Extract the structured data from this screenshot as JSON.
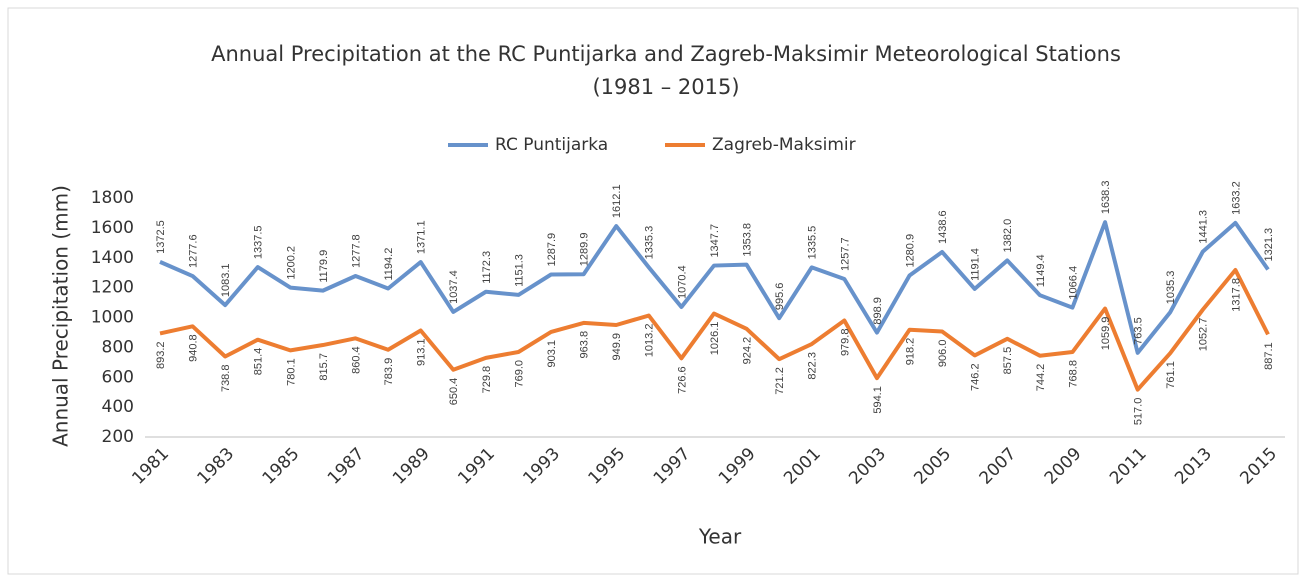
{
  "chart_data": {
    "type": "line",
    "title": "Annual Precipitation at the RC Puntijarka and Zagreb-Maksimir Meteorological Stations",
    "subtitle": "(1981 – 2015)",
    "x_label": "Year",
    "y_label": "Annual Precipitation (mm)",
    "categories": [
      1981,
      null,
      1983,
      null,
      1985,
      null,
      1987,
      null,
      1989,
      null,
      1991,
      null,
      1993,
      null,
      1995,
      null,
      1997,
      null,
      1999,
      null,
      2001,
      null,
      2003,
      null,
      2005,
      null,
      2007,
      null,
      2009,
      null,
      2011,
      null,
      2013,
      null,
      2015
    ],
    "series": [
      {
        "name": "RC Puntijarka",
        "color": "#6792cb",
        "values": [
          1372.5,
          1277.6,
          1083.1,
          1337.5,
          1200.2,
          1179.9,
          1277.8,
          1194.2,
          1371.1,
          1037.4,
          1172.3,
          1151.3,
          1287.9,
          1289.9,
          1612.1,
          1335.3,
          1070.4,
          1347.7,
          1353.8,
          995.6,
          1335.5,
          1257.7,
          898.9,
          1280.9,
          1438.6,
          1191.4,
          1382.0,
          1149.4,
          1066.4,
          1638.3,
          763.5,
          1035.3,
          1441.3,
          1633.2,
          1321.3
        ],
        "value_labels": [
          "1372.5",
          "1277.6",
          "1083.1",
          "1337.5",
          "1200.2",
          "1179.9",
          "1277.8",
          "1194.2",
          "1371.1",
          "1037.4",
          "1172.3",
          "1151.3",
          "1287.9",
          "1289.9",
          "1612.1",
          "1335.3",
          "1070.4",
          "1347.7",
          "1353.8",
          "995.6",
          "1335.5",
          "1257.7",
          "898.9",
          "1280.9",
          "1438.6",
          "1191.4",
          "1382.0",
          "1149.4",
          "1066.4",
          "1638.3",
          "763.5",
          "1035.3",
          "1441.3",
          "1633.2",
          "1321.3"
        ]
      },
      {
        "name": "Zagreb-Maksimir",
        "color": "#ed7d31",
        "values": [
          893.2,
          940.8,
          738.8,
          851.4,
          780.1,
          815.7,
          860.4,
          783.9,
          913.1,
          650.4,
          729.8,
          769.0,
          903.1,
          963.8,
          949.9,
          1013.2,
          726.6,
          1026.1,
          924.2,
          721.2,
          822.3,
          979.8,
          594.1,
          918.2,
          906.0,
          746.2,
          857.5,
          744.2,
          768.8,
          1059.9,
          517.0,
          761.1,
          1052.7,
          1317.8,
          887.1
        ],
        "value_labels": [
          "893.2",
          "940.8",
          "738.8",
          "851.4",
          "780.1",
          "815.7",
          "860.4",
          "783.9",
          "913.1",
          "650.4",
          "729.8",
          "769.0",
          "903.1",
          "963.8",
          "949.9",
          "1013.2",
          "726.6",
          "1026.1",
          "924.2",
          "721.2",
          "822.3",
          "979.8",
          "594.1",
          "918.2",
          "906.0",
          "746.2",
          "857.5",
          "744.2",
          "768.8",
          "1059.9",
          "517.0",
          "761.1",
          "1052.7",
          "1317.8",
          "887.1"
        ]
      }
    ],
    "ylim": [
      200,
      1800
    ],
    "yticks": [
      200,
      400,
      600,
      800,
      1000,
      1200,
      1400,
      1600,
      1800
    ],
    "grid": false,
    "legend": "top"
  }
}
